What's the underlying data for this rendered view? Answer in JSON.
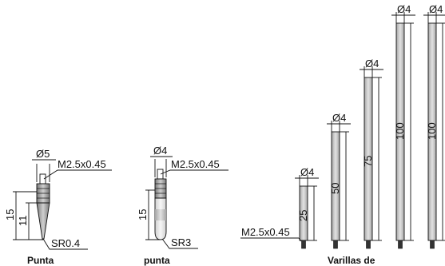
{
  "colors": {
    "line": "#111111",
    "rod_fill": "#c9c9c9",
    "rod_edge": "#8f8f8f",
    "tip_dark": "#9a9a9a",
    "tip_light": "#e6e6e6",
    "background": "#ffffff"
  },
  "point_tip": {
    "diameter_label": "Ø5",
    "thread_label": "M2.5x0.45",
    "total_length_label": "15",
    "cone_length_label": "11",
    "radius_label": "SR0.4",
    "caption": "Punta"
  },
  "ball_tip": {
    "diameter_label": "Ø4",
    "thread_label": "M2.5x0.45",
    "length_label": "15",
    "radius_label": "SR3",
    "caption": "punta"
  },
  "rods": {
    "thread_label": "M2.5x0.45",
    "caption": "Varillas de",
    "items": [
      {
        "diameter_label": "Ø4",
        "length_label": "25",
        "length_mm": 25
      },
      {
        "diameter_label": "Ø4",
        "length_label": "50",
        "length_mm": 50
      },
      {
        "diameter_label": "Ø4",
        "length_label": "75",
        "length_mm": 75
      },
      {
        "diameter_label": "Ø4",
        "length_label": "100",
        "length_mm": 100
      },
      {
        "diameter_label": "Ø4",
        "length_label": "100",
        "length_mm": 100
      }
    ]
  }
}
